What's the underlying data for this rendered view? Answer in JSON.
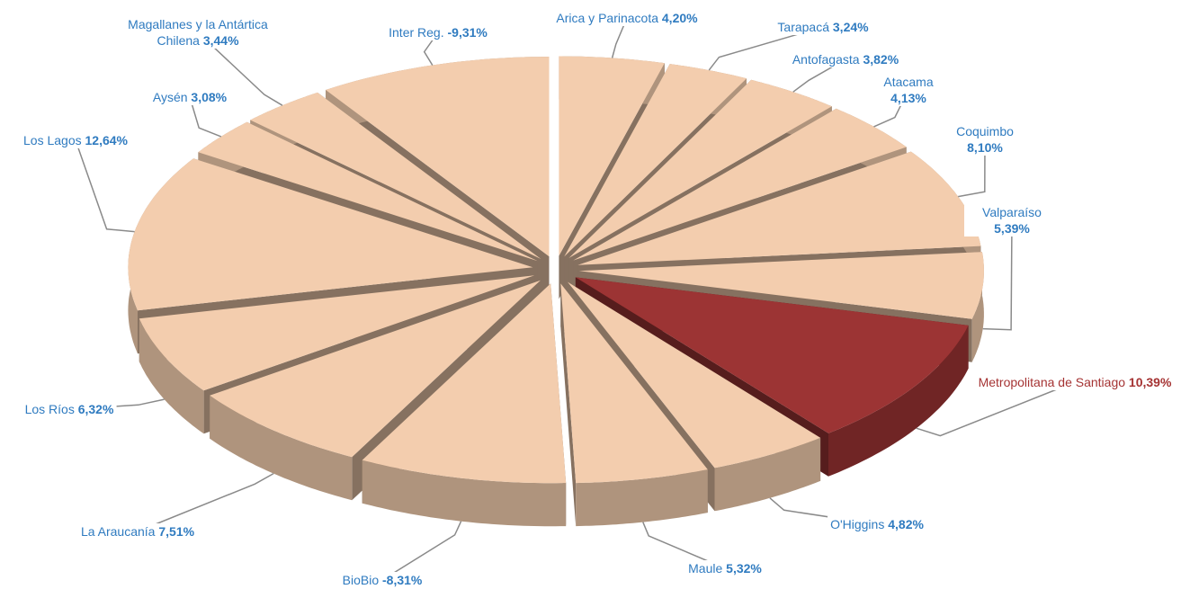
{
  "chart_data": {
    "type": "pie3d",
    "categories": [
      "Arica y Parinacota",
      "Tarapacá",
      "Antofagasta",
      "Atacama",
      "Coquimbo",
      "Valparaíso",
      "Metropolitana de Santiago",
      "O'Higgins",
      "Maule",
      "BioBio",
      "La Araucanía",
      "Los Ríos",
      "Los Lagos",
      "Aysén",
      "Magallanes y la Antártica Chilena",
      "Inter Reg."
    ],
    "values": [
      4.2,
      3.24,
      3.82,
      4.13,
      8.1,
      5.39,
      10.39,
      4.82,
      5.32,
      -8.31,
      7.51,
      6.32,
      12.64,
      3.08,
      3.44,
      -9.31
    ],
    "value_labels": [
      "4,20%",
      "3,24%",
      "3,82%",
      "4,13%",
      "8,10%",
      "5,39%",
      "10,39%",
      "4,82%",
      "5,32%",
      "-8,31%",
      "7,51%",
      "6,32%",
      "12,64%",
      "3,08%",
      "3,44%",
      "-9,31%"
    ],
    "colors": [
      "#f3cdae",
      "#f3cdae",
      "#f3cdae",
      "#f3cdae",
      "#f3cdae",
      "#f3cdae",
      "#9c3434",
      "#f3cdae",
      "#f3cdae",
      "#f3cdae",
      "#f3cdae",
      "#f3cdae",
      "#f3cdae",
      "#f3cdae",
      "#f3cdae",
      "#f3cdae"
    ],
    "label_colors": [
      "#2f7bc0",
      "#2f7bc0",
      "#2f7bc0",
      "#2f7bc0",
      "#2f7bc0",
      "#2f7bc0",
      "#a53333",
      "#2f7bc0",
      "#2f7bc0",
      "#2f7bc0",
      "#2f7bc0",
      "#2f7bc0",
      "#2f7bc0",
      "#2f7bc0",
      "#2f7bc0",
      "#2f7bc0"
    ]
  }
}
